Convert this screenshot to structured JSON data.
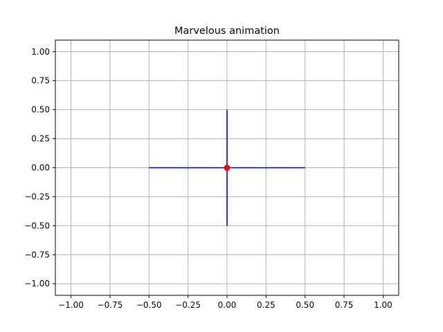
{
  "chart_data": {
    "type": "line",
    "title": "Marvelous animation",
    "xlabel": "",
    "ylabel": "",
    "xlim": [
      -1.1,
      1.1
    ],
    "ylim": [
      -1.1,
      1.1
    ],
    "grid": true,
    "x_ticks": [
      -1.0,
      -0.75,
      -0.5,
      -0.25,
      0.0,
      0.25,
      0.5,
      0.75,
      1.0
    ],
    "x_tick_labels": [
      "−1.00",
      "−0.75",
      "−0.50",
      "−0.25",
      "0.00",
      "0.25",
      "0.50",
      "0.75",
      "1.00"
    ],
    "y_ticks": [
      1.0,
      0.75,
      0.5,
      0.25,
      0.0,
      -0.25,
      -0.5,
      -0.75,
      -1.0
    ],
    "y_tick_labels": [
      "1.00",
      "0.75",
      "0.50",
      "0.25",
      "0.00",
      "−0.25",
      "−0.50",
      "−0.75",
      "−1.00"
    ],
    "series": [
      {
        "type": "line",
        "color": "#0000cc",
        "x": [
          -0.5,
          0.5
        ],
        "y": [
          0,
          0
        ]
      },
      {
        "type": "line",
        "color": "#0000cc",
        "x": [
          0,
          0
        ],
        "y": [
          -0.5,
          0.5
        ]
      },
      {
        "type": "scatter",
        "color": "#ff0000",
        "x": [
          0
        ],
        "y": [
          0
        ]
      }
    ],
    "colors": {
      "grid": "#b0b0b0",
      "axis": "#000000"
    }
  }
}
